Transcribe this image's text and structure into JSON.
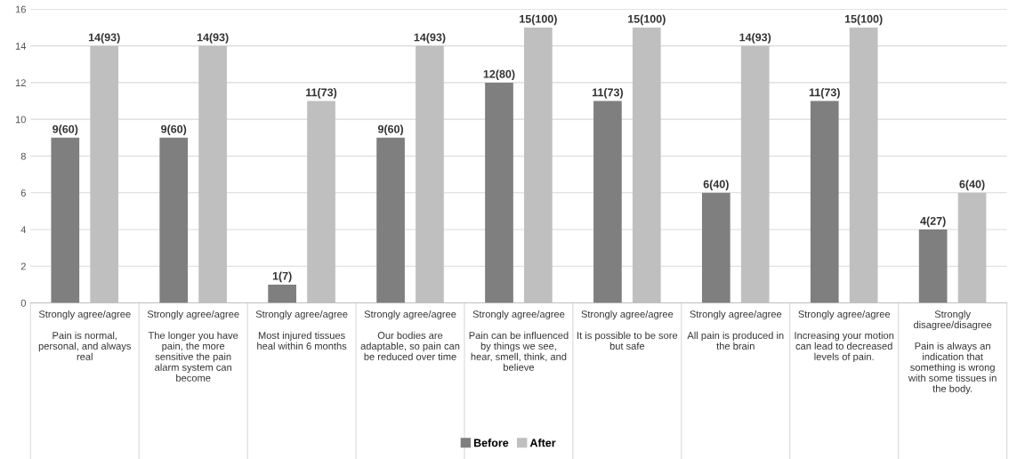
{
  "chart_data": {
    "type": "bar",
    "categories": [
      "Strongly agree/agree\n\nPain is normal,\npersonal, and always\nreal",
      "Strongly agree/agree\n\nThe longer you have\npain, the more\nsensitive the pain\nalarm system can\nbecome",
      "Strongly agree/agree\n\nMost injured tissues\nheal within 6 months",
      "Strongly agree/agree\n\nOur bodies are\nadaptable, so pain can\nbe reduced over time",
      "Strongly agree/agree\n\nPain can be influenced\nby things we see,\nhear, smell, think, and\nbelieve",
      "Strongly agree/agree\n\nIt is possible to be sore\nbut safe",
      "Strongly agree/agree\n\nAll pain is produced in\nthe brain",
      "Strongly agree/agree\n\nIncreasing your motion\ncan lead to decreased\nlevels of pain.",
      "Strongly\ndisagree/disagree\n\nPain is always an\nindication that\nsomething is wrong\nwith some tissues in\nthe body."
    ],
    "series": [
      {
        "name": "Before",
        "color": "#7f7f7f",
        "values": [
          9,
          9,
          1,
          9,
          12,
          11,
          6,
          11,
          4
        ],
        "value_labels": [
          "9(60)",
          "9(60)",
          "1(7)",
          "9(60)",
          "12(80)",
          "11(73)",
          "6(40)",
          "11(73)",
          "4(27)"
        ]
      },
      {
        "name": "After",
        "color": "#bfbfbf",
        "values": [
          14,
          14,
          11,
          14,
          15,
          15,
          14,
          15,
          6
        ],
        "value_labels": [
          "14(93)",
          "14(93)",
          "11(73)",
          "14(93)",
          "15(100)",
          "15(100)",
          "14(93)",
          "15(100)",
          "6(40)"
        ]
      }
    ],
    "ylim": [
      0,
      16
    ],
    "yticks": [
      0,
      2,
      4,
      6,
      8,
      10,
      12,
      14,
      16
    ],
    "grid": "y",
    "legend": "bottom"
  }
}
